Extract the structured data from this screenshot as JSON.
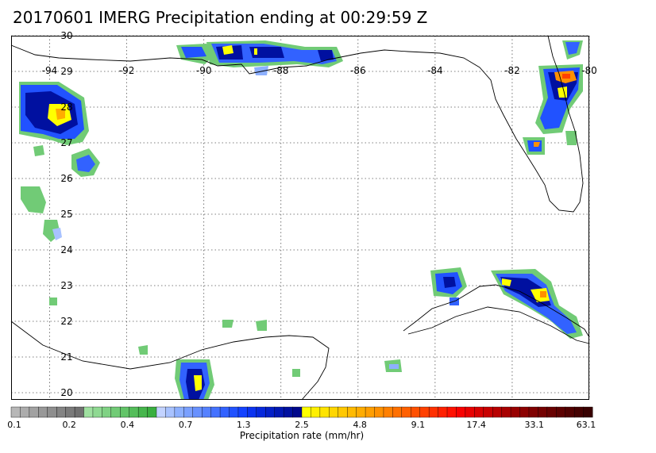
{
  "title": "20170601 IMERG Precipitation ending at 00:29:59 Z",
  "map": {
    "lon_range": [
      -95,
      -80
    ],
    "lat_range": [
      19.8,
      30
    ],
    "lon_ticks": [
      "-94",
      "-92",
      "-90",
      "-88",
      "-86",
      "-84",
      "-82",
      "-80"
    ],
    "lat_ticks": [
      "30",
      "29",
      "28",
      "27",
      "26",
      "25",
      "24",
      "23",
      "22",
      "21",
      "20"
    ],
    "colors": {
      "coast": "#000000",
      "grid": "#555555",
      "frame": "#000000"
    }
  },
  "colorbar": {
    "colors": [
      "#b7b7b7",
      "#acacac",
      "#a2a2a2",
      "#989898",
      "#8e8e8e",
      "#848484",
      "#7a7a7a",
      "#707070",
      "#9fe0a0",
      "#8fd992",
      "#80d284",
      "#71cb76",
      "#62c468",
      "#54bd5a",
      "#46b64c",
      "#39af3f",
      "#c3d3ff",
      "#a8c2ff",
      "#8db0ff",
      "#7aa0ff",
      "#6891ff",
      "#5581ff",
      "#4472ff",
      "#3262ff",
      "#2152ff",
      "#1342ff",
      "#0b33f0",
      "#0628dc",
      "#0420c8",
      "#0218b4",
      "#0010a0",
      "#00088c",
      "#ffff00",
      "#fff000",
      "#ffe400",
      "#ffd600",
      "#ffc800",
      "#ffba00",
      "#ffac00",
      "#ff9e00",
      "#ff9000",
      "#ff8000",
      "#ff7000",
      "#ff6000",
      "#ff5000",
      "#ff4000",
      "#ff3000",
      "#ff2000",
      "#ff1000",
      "#f80000",
      "#e80000",
      "#d80000",
      "#c80000",
      "#b80000",
      "#a80000",
      "#980000",
      "#8c0000",
      "#800000",
      "#740000",
      "#680000",
      "#5c0000",
      "#500000",
      "#440000",
      "#380000"
    ],
    "tick_labels": [
      "0.1",
      "0.2",
      "0.4",
      "0.7",
      "1.3",
      "2.5",
      "4.8",
      "9.1",
      "17.4",
      "33.1",
      "63.1"
    ],
    "label": "Precipitation rate (mm/hr)"
  }
}
